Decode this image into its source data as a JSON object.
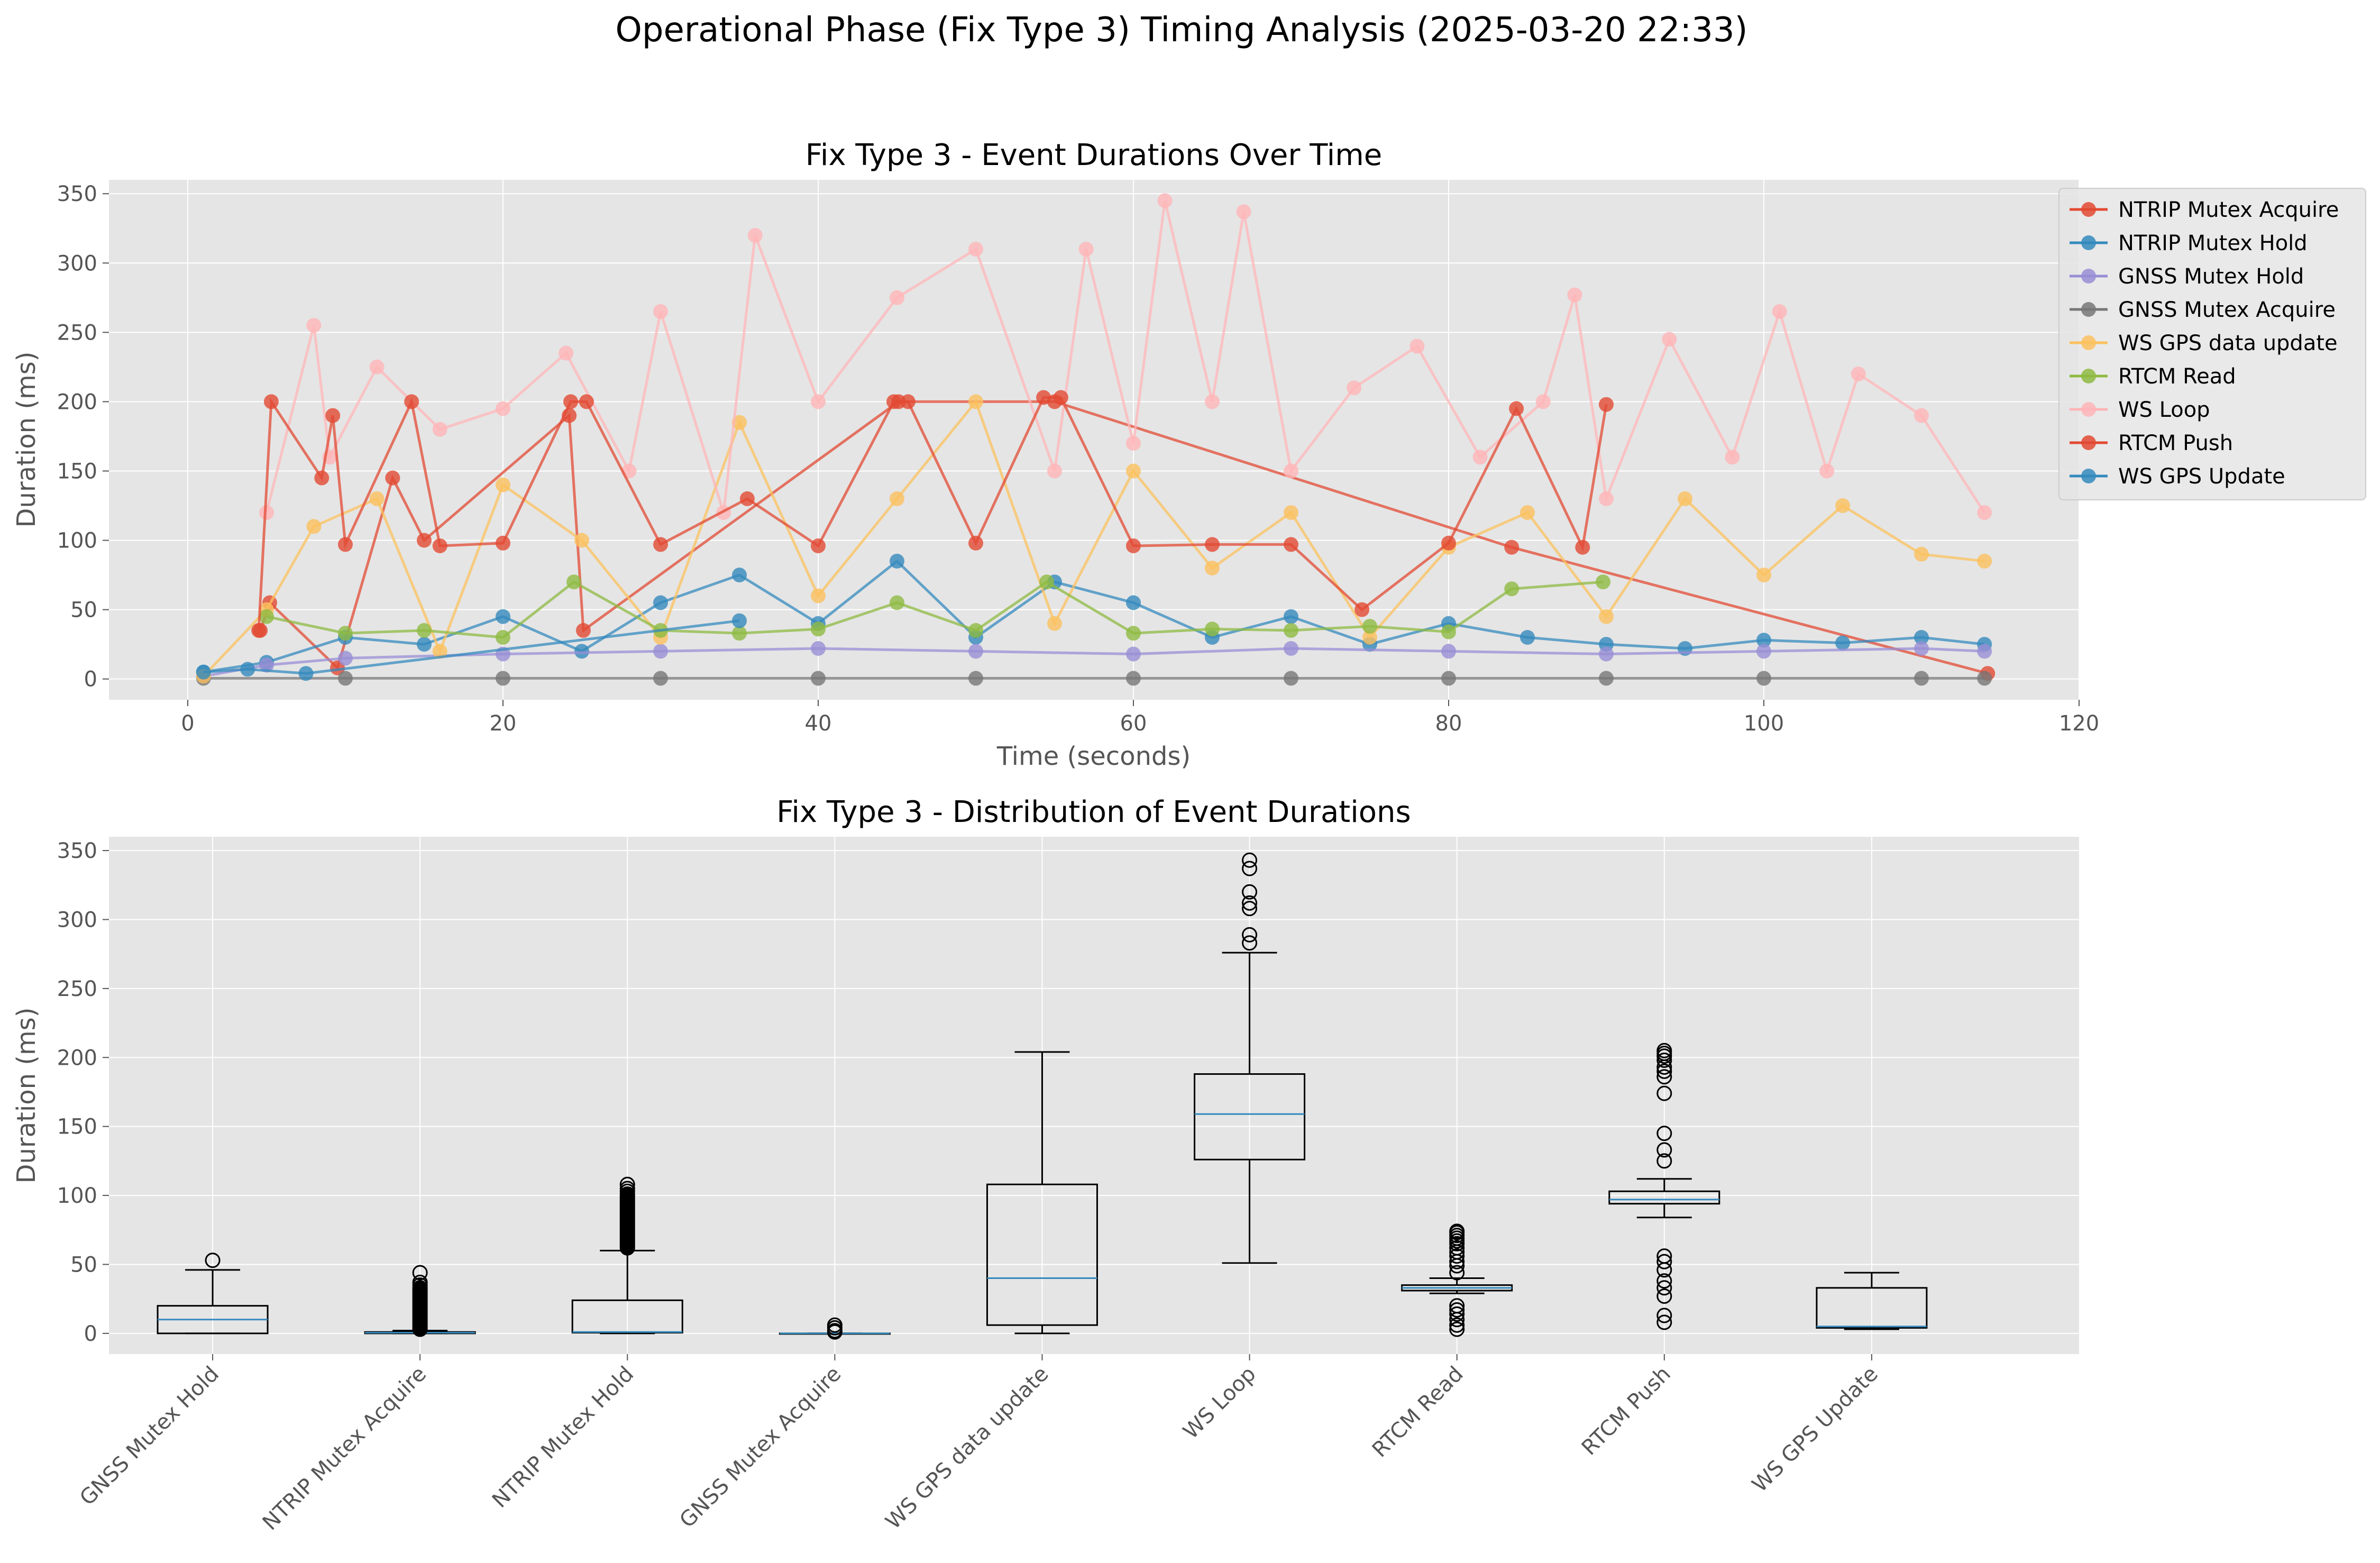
{
  "figure": {
    "title": "Operational Phase (Fix Type 3) Timing Analysis (2025-03-20 22:33)"
  },
  "chart_data": [
    {
      "type": "line",
      "title": "Fix Type 3 - Event Durations Over Time",
      "xlabel": "Time (seconds)",
      "ylabel": "Duration (ms)",
      "xlim": [
        -5,
        120
      ],
      "ylim": [
        -15,
        360
      ],
      "xticks": [
        0,
        20,
        40,
        60,
        80,
        100,
        120
      ],
      "yticks": [
        0,
        50,
        100,
        150,
        200,
        250,
        300,
        350
      ],
      "grid": true,
      "legend_position": "upper right, outside plot",
      "series": [
        {
          "name": "NTRIP Mutex Acquire",
          "color": "#E24A33",
          "x": [
            4.6,
            5.2,
            9.5,
            13.0,
            15.0,
            24.2,
            25.1,
            45.1,
            55.0,
            84.0,
            114.2
          ],
          "y": [
            35,
            55,
            8,
            145,
            100,
            190,
            35,
            200,
            200,
            95,
            4
          ]
        },
        {
          "name": "NTRIP Mutex Hold",
          "color": "#348ABD",
          "x": [
            1,
            5,
            10,
            15,
            20,
            25,
            30,
            35,
            40,
            45,
            50,
            55,
            60,
            65,
            70,
            75,
            80,
            85,
            90,
            95,
            100,
            105,
            110,
            114
          ],
          "y": [
            5,
            12,
            30,
            25,
            45,
            20,
            55,
            75,
            40,
            85,
            30,
            70,
            55,
            30,
            45,
            25,
            40,
            30,
            25,
            22,
            28,
            26,
            30,
            25
          ]
        },
        {
          "name": "GNSS Mutex Hold",
          "color": "#988ED5",
          "x": [
            1,
            5,
            10,
            20,
            30,
            40,
            50,
            60,
            70,
            80,
            90,
            100,
            110,
            114
          ],
          "y": [
            2,
            10,
            15,
            18,
            20,
            22,
            20,
            18,
            22,
            20,
            18,
            20,
            22,
            20
          ]
        },
        {
          "name": "GNSS Mutex Acquire",
          "color": "#777777",
          "x": [
            1,
            10,
            20,
            30,
            40,
            50,
            60,
            70,
            80,
            90,
            100,
            110,
            114
          ],
          "y": [
            0.5,
            0.5,
            0.5,
            0.5,
            0.5,
            0.5,
            0.5,
            0.5,
            0.5,
            0.5,
            0.5,
            0.5,
            0.5
          ]
        },
        {
          "name": "WS GPS data update",
          "color": "#FBC15E",
          "x": [
            1,
            5,
            8,
            12,
            16,
            20,
            25,
            30,
            35,
            40,
            45,
            50,
            55,
            60,
            65,
            70,
            75,
            80,
            85,
            90,
            95,
            100,
            105,
            110,
            114
          ],
          "y": [
            2,
            50,
            110,
            130,
            20,
            140,
            100,
            30,
            185,
            60,
            130,
            200,
            40,
            150,
            80,
            120,
            30,
            95,
            120,
            45,
            130,
            75,
            125,
            90,
            85
          ]
        },
        {
          "name": "RTCM Read",
          "color": "#8EBA42",
          "x": [
            5,
            10,
            15,
            20,
            24.5,
            30,
            35,
            40,
            45,
            50,
            54.5,
            60,
            65,
            70,
            75,
            80,
            84,
            89.8
          ],
          "y": [
            45,
            33,
            35,
            30,
            70,
            35,
            33,
            36,
            55,
            35,
            70,
            33,
            36,
            35,
            38,
            34,
            65,
            70
          ]
        },
        {
          "name": "WS Loop",
          "color": "#FFB5B8",
          "x": [
            5,
            8,
            9,
            12,
            16,
            20,
            24,
            28,
            30,
            34,
            36,
            40,
            45,
            50,
            55,
            57,
            60,
            62,
            65,
            67,
            70,
            74,
            78,
            82,
            86,
            88,
            90,
            94,
            98,
            101,
            104,
            106,
            110,
            114
          ],
          "y": [
            120,
            255,
            160,
            225,
            180,
            195,
            235,
            150,
            265,
            120,
            320,
            200,
            275,
            310,
            150,
            310,
            170,
            345,
            200,
            337,
            150,
            210,
            240,
            160,
            200,
            277,
            130,
            245,
            160,
            265,
            150,
            220,
            190,
            120
          ]
        },
        {
          "name": "RTCM Push",
          "color": "#E24A33",
          "x": [
            4.5,
            5.3,
            8.5,
            9.2,
            10,
            14.2,
            16,
            20,
            24.3,
            25.3,
            30,
            35.5,
            40,
            44.8,
            45.7,
            50,
            54.3,
            55.4,
            60,
            65,
            70,
            74.5,
            80,
            84.3,
            88.5,
            90
          ],
          "y": [
            35,
            200,
            145,
            190,
            97,
            200,
            96,
            98,
            200,
            200,
            97,
            130,
            96,
            200,
            200,
            98,
            203,
            203,
            96,
            97,
            97,
            50,
            98,
            195,
            95,
            198
          ]
        },
        {
          "name": "WS GPS Update",
          "color": "#348ABD",
          "x": [
            1,
            3.8,
            7.5,
            35
          ],
          "y": [
            5,
            7,
            4,
            42
          ]
        }
      ]
    },
    {
      "type": "box",
      "title": "Fix Type 3 - Distribution of Event Durations",
      "xlabel": "",
      "ylabel": "Duration (ms)",
      "ylim": [
        -15,
        360
      ],
      "yticks": [
        0,
        50,
        100,
        150,
        200,
        250,
        300,
        350
      ],
      "grid": true,
      "categories": [
        "GNSS Mutex Hold",
        "NTRIP Mutex Acquire",
        "NTRIP Mutex Hold",
        "GNSS Mutex Acquire",
        "WS GPS data update",
        "WS Loop",
        "RTCM Read",
        "RTCM Push",
        "WS GPS Update"
      ],
      "boxes": [
        {
          "whislo": 0,
          "q1": 0,
          "med": 10,
          "q3": 20,
          "whishi": 46,
          "fliers": [
            53
          ]
        },
        {
          "whislo": 0,
          "q1": 0,
          "med": 0.5,
          "q3": 1,
          "whishi": 2,
          "fliers": [
            3,
            4,
            5,
            6,
            7,
            8,
            9,
            10,
            11,
            12,
            13,
            14,
            15,
            16,
            17,
            18,
            19,
            20,
            21,
            22,
            23,
            24,
            25,
            26,
            27,
            28,
            29,
            30,
            31,
            32,
            33,
            35,
            37,
            44
          ]
        },
        {
          "whislo": 0,
          "q1": 0.5,
          "med": 1,
          "q3": 24,
          "whishi": 60,
          "fliers": [
            62,
            63,
            64,
            65,
            66,
            67,
            68,
            69,
            70,
            71,
            72,
            73,
            74,
            75,
            76,
            77,
            78,
            79,
            80,
            81,
            82,
            83,
            84,
            85,
            86,
            87,
            88,
            89,
            90,
            91,
            92,
            93,
            94,
            95,
            96,
            97,
            98,
            99,
            100,
            101,
            103,
            105,
            108
          ]
        },
        {
          "whislo": 0,
          "q1": 0,
          "med": 0,
          "q3": 0,
          "whishi": 0,
          "fliers": [
            1,
            2,
            4,
            6
          ]
        },
        {
          "whislo": 0,
          "q1": 6,
          "med": 40,
          "q3": 108,
          "whishi": 204,
          "fliers": []
        },
        {
          "whislo": 51,
          "q1": 126,
          "med": 159,
          "q3": 188,
          "whishi": 276,
          "fliers": [
            283,
            289,
            308,
            312,
            320,
            337,
            343
          ]
        },
        {
          "whislo": 29,
          "q1": 31,
          "med": 33,
          "q3": 35,
          "whishi": 40,
          "fliers": [
            3,
            6,
            10,
            14,
            17,
            20,
            44,
            49,
            52,
            56,
            59,
            62,
            65,
            67,
            69,
            71,
            73,
            74
          ]
        },
        {
          "whislo": 84,
          "q1": 94,
          "med": 97,
          "q3": 103,
          "whishi": 112,
          "fliers": [
            8,
            13,
            27,
            33,
            38,
            46,
            52,
            56,
            125,
            133,
            145,
            174,
            186,
            190,
            193,
            198,
            201,
            203,
            205
          ]
        },
        {
          "whislo": 3,
          "q1": 4,
          "med": 5,
          "q3": 33,
          "whishi": 44,
          "fliers": []
        }
      ]
    }
  ]
}
